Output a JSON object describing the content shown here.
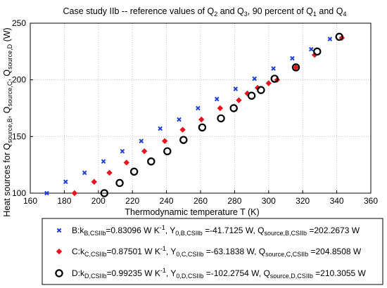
{
  "chart_data": {
    "type": "scatter",
    "title_parts": [
      {
        "t": "Case study IIb -- reference values of Q"
      },
      {
        "t": "2",
        "sub": true
      },
      {
        "t": " and Q"
      },
      {
        "t": "3",
        "sub": true
      },
      {
        "t": ", 90 percent of Q"
      },
      {
        "t": "1",
        "sub": true
      },
      {
        "t": " and Q"
      },
      {
        "t": "4",
        "sub": true
      }
    ],
    "xlabel": "Thermodynamic temperature T (K)",
    "ylabel_parts": [
      {
        "t": "Heat sources for Q"
      },
      {
        "t": "source,B",
        "sub": true
      },
      {
        "t": ", Q"
      },
      {
        "t": "source,C",
        "sub": true
      },
      {
        "t": ", Q"
      },
      {
        "t": "source,D",
        "sub": true
      },
      {
        "t": " (W)"
      }
    ],
    "xlim": [
      160,
      360
    ],
    "ylim": [
      100,
      250
    ],
    "xticks": [
      "160",
      "180",
      "200",
      "220",
      "240",
      "260",
      "280",
      "300",
      "320",
      "340",
      "360"
    ],
    "yticks": [
      "100",
      "150",
      "200",
      "250"
    ],
    "grid": true,
    "legend_position": "bottom",
    "series": [
      {
        "marker": "x",
        "color": "#1f3fd6",
        "legend_parts": [
          {
            "t": "B:k"
          },
          {
            "t": "B,CSIIb",
            "sub": true
          },
          {
            "t": "=0.83096 W K"
          },
          {
            "t": "-1",
            "sup": true
          },
          {
            "t": ", Y"
          },
          {
            "t": "0,B,CSIIb",
            "sub": true
          },
          {
            "t": " =-41.7125 W, Q"
          },
          {
            "t": "source,B,CSIIb",
            "sub": true
          },
          {
            "t": " =202.2673 W"
          }
        ],
        "x": [
          169.7,
          180.8,
          191.9,
          203.0,
          214.1,
          225.2,
          236.3,
          247.4,
          258.5,
          269.6,
          280.6,
          291.7,
          302.8,
          313.9,
          325.0,
          336.0
        ],
        "y": [
          100,
          110,
          118,
          128,
          137,
          146,
          157,
          165,
          175,
          183,
          192,
          201,
          210,
          219,
          227,
          236
        ]
      },
      {
        "marker": "diamond",
        "color": "#e8141c",
        "legend_parts": [
          {
            "t": "C:k"
          },
          {
            "t": "C,CSIIb",
            "sub": true
          },
          {
            "t": "=0.87501 W K"
          },
          {
            "t": "-1",
            "sup": true
          },
          {
            "t": ", Y"
          },
          {
            "t": "0,C,CSIIb",
            "sub": true
          },
          {
            "t": " =-63.1838 W, Q"
          },
          {
            "t": "source,C,CSIIb",
            "sub": true
          },
          {
            "t": " =204.8508 W"
          }
        ],
        "x": [
          186.0,
          197.5,
          206.5,
          216.5,
          227.0,
          239.0,
          249.5,
          260.5,
          271.5,
          282.5,
          287.5,
          293.5,
          300.0,
          305.0,
          316.0,
          327.0,
          343.0
        ],
        "y": [
          100,
          110,
          118,
          127,
          137,
          146,
          156,
          165,
          175,
          182,
          188,
          193,
          197,
          200,
          211,
          222,
          237
        ]
      },
      {
        "marker": "circle",
        "color": "#000000",
        "legend_parts": [
          {
            "t": "D:k"
          },
          {
            "t": "D,CSIIb",
            "sub": true
          },
          {
            "t": "=0.99235 W K"
          },
          {
            "t": "-1",
            "sup": true
          },
          {
            "t": ", Y"
          },
          {
            "t": "0,D,CSIIb",
            "sub": true
          },
          {
            "t": " =-102.2754 W, Q"
          },
          {
            "t": "source,D,CSIIb",
            "sub": true
          },
          {
            "t": " =210.3055 W"
          }
        ],
        "x": [
          203.5,
          212.5,
          221.0,
          231.0,
          240.5,
          250.0,
          261.0,
          272.0,
          279.5,
          290.0,
          295.5,
          303.5,
          316.0,
          328.5,
          341.5
        ],
        "y": [
          100,
          109,
          119,
          128,
          137,
          147,
          158,
          166,
          175,
          186,
          191,
          201,
          211,
          225,
          238
        ]
      }
    ]
  }
}
